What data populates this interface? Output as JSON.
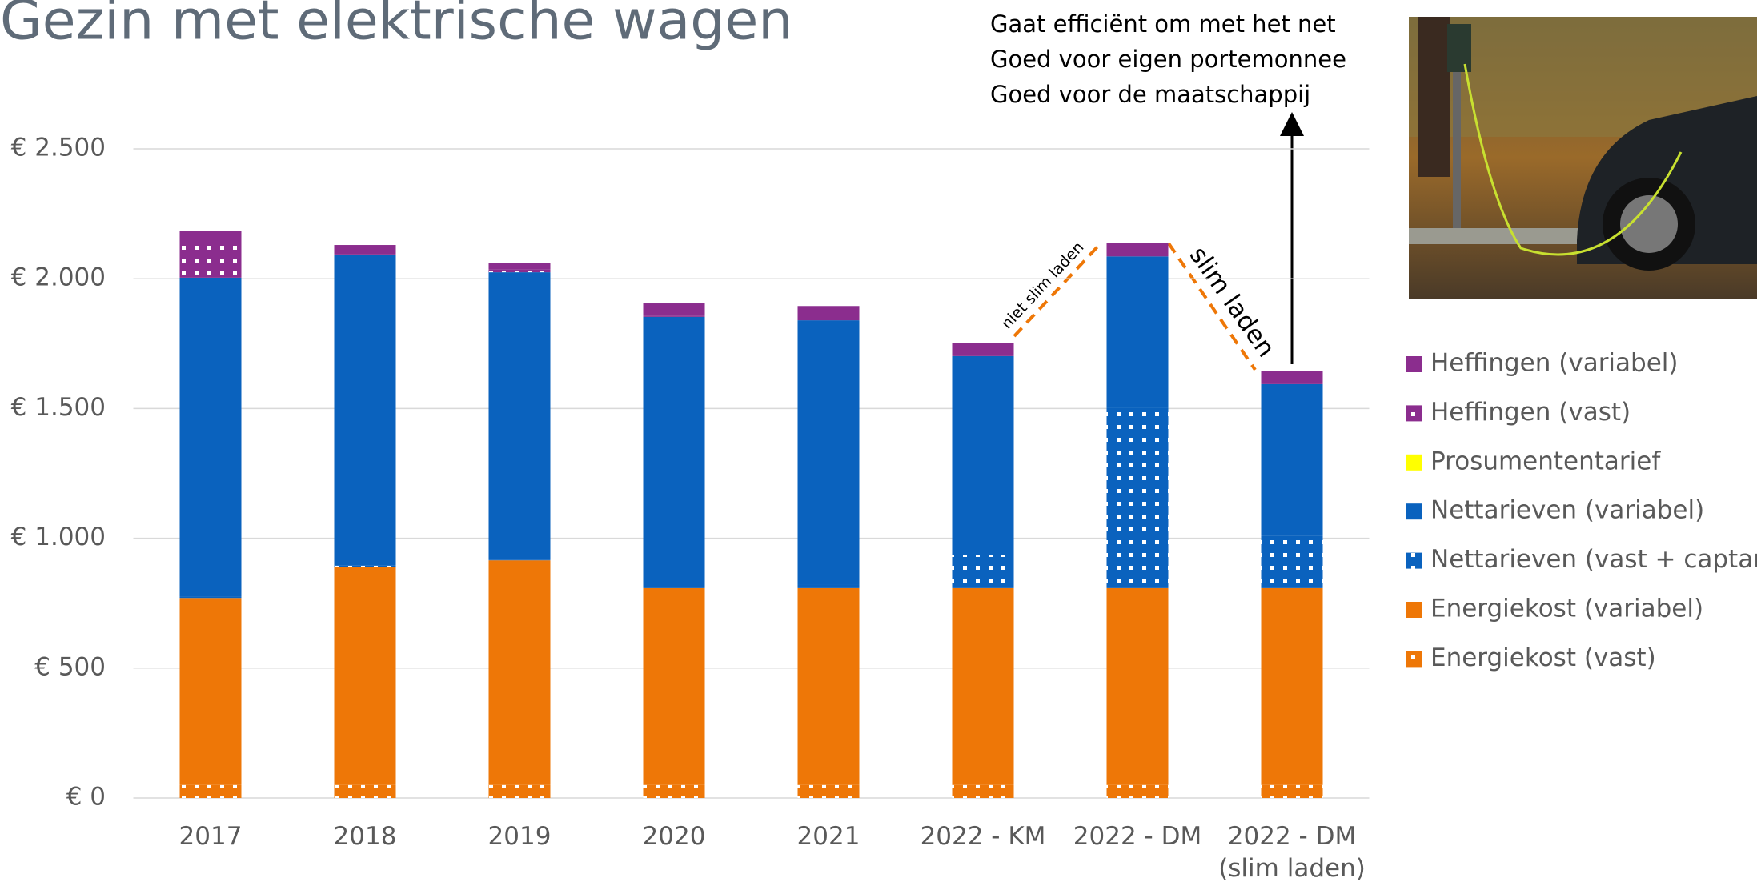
{
  "chart_data": {
    "type": "stacked_bar",
    "title": "Gezin met elektrische wagen",
    "notes": [
      "Gaat efficiënt om met het net",
      "Goed voor eigen portemonnee",
      "Goed voor de maatschappij"
    ],
    "annotations": [
      "niet slim laden",
      "slim laden"
    ],
    "categories": [
      "2017",
      "2018",
      "2019",
      "2020",
      "2021",
      "2022 - KM",
      "2022 - DM",
      "2022 - DM\n(slim laden)"
    ],
    "series": [
      {
        "name": "Energiekost (vast)",
        "color": "#ee7707",
        "pattern": "dots",
        "values": [
          50,
          50,
          50,
          50,
          50,
          50,
          50,
          50
        ]
      },
      {
        "name": "Energiekost (variabel)",
        "color": "#ee7707",
        "values": [
          720,
          840,
          865,
          758,
          758,
          758,
          758,
          758
        ]
      },
      {
        "name": "Nettarieven (vast + captar)",
        "color": "#0a62be",
        "pattern": "dots",
        "values": [
          5,
          5,
          3,
          5,
          15,
          129,
          695,
          202
        ]
      },
      {
        "name": "Nettarieven (variabel)",
        "color": "#0a62be",
        "values": [
          1229,
          1195,
          1107,
          1040,
          1017,
          765,
          583,
          584
        ]
      },
      {
        "name": "Prosumententarief",
        "color": "#ffff00",
        "values": [
          0,
          0,
          0,
          0,
          0,
          0,
          0,
          0
        ]
      },
      {
        "name": "Heffingen (vast)",
        "color": "#8b2d8e",
        "pattern": "dots",
        "values": [
          134,
          5,
          10,
          5,
          5,
          5,
          5,
          5
        ]
      },
      {
        "name": "Heffingen (variabel)",
        "color": "#8b2d8e",
        "values": [
          47,
          35,
          25,
          47,
          50,
          46,
          47,
          46
        ]
      }
    ],
    "ylim": [
      0,
      2500
    ],
    "yticks": [
      {
        "value": 0,
        "label": "€ 0"
      },
      {
        "value": 500,
        "label": "€ 500"
      },
      {
        "value": 1000,
        "label": "€ 1.000"
      },
      {
        "value": 1500,
        "label": "€ 1.500"
      },
      {
        "value": 2000,
        "label": "€ 2.000"
      },
      {
        "value": 2500,
        "label": "€ 2.500"
      }
    ],
    "grid": true
  }
}
